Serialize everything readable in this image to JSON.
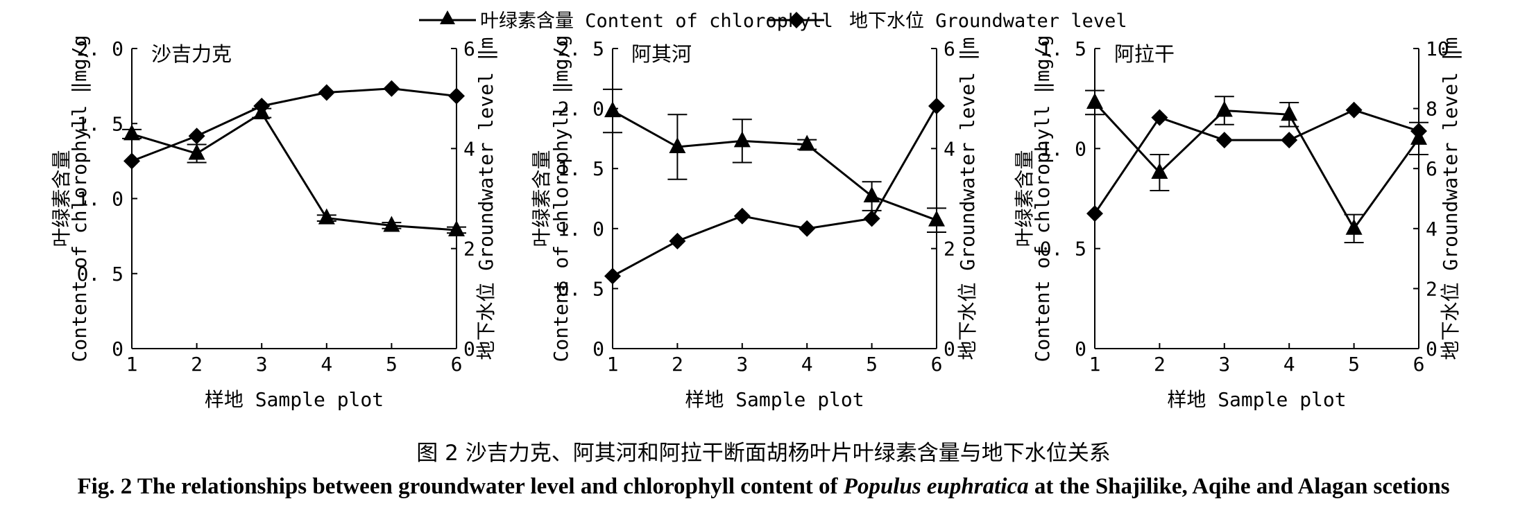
{
  "legend": {
    "chlorophyll": "叶绿素含量 Content of chlorophyll",
    "groundwater": "地下水位 Groundwater level"
  },
  "axis_labels": {
    "left_cn": "叶绿素含量",
    "left_en": "Content of chlorophyll ‖mg/g",
    "right": "地下水位 Groundwater level ‖m",
    "x": "样地 Sample plot"
  },
  "caption": {
    "cn": "图 2   沙吉力克、阿其河和阿拉干断面胡杨叶片叶绿素含量与地下水位关系",
    "en_prefix": "Fig. 2    The relationships between groundwater level and chlorophyll content of ",
    "en_species": "Populus euphratica",
    "en_suffix": " at the Shajilike, Aqihe and Alagan scetions"
  },
  "chart_data": [
    {
      "type": "line",
      "title": "沙吉力克",
      "x": [
        1,
        2,
        3,
        4,
        5,
        6
      ],
      "xlabel": "样地 Sample plot",
      "y_left": {
        "label": "Content of chlorophyll ‖mg/g",
        "lim": [
          0,
          2.0
        ],
        "ticks": [
          0,
          0.5,
          1.0,
          1.5,
          2.0
        ],
        "tick_labels": [
          "0",
          "0. 5",
          "1. 0",
          "1. 5",
          "2. 0"
        ]
      },
      "y_right": {
        "label": "地下水位 Groundwater level ‖m",
        "lim": [
          0,
          6
        ],
        "ticks": [
          0,
          2,
          4,
          6
        ]
      },
      "series": [
        {
          "name": "叶绿素含量 Content of chlorophyll",
          "axis": "left",
          "marker": "triangle",
          "values": [
            1.43,
            1.3,
            1.57,
            0.87,
            0.82,
            0.79
          ],
          "errors": [
            0.03,
            0.06,
            0.03,
            0.02,
            0.02,
            0.02
          ]
        },
        {
          "name": "地下水位 Groundwater level",
          "axis": "right",
          "marker": "diamond",
          "values": [
            3.75,
            4.25,
            4.85,
            5.12,
            5.2,
            5.05
          ]
        }
      ]
    },
    {
      "type": "line",
      "title": "阿其河",
      "x": [
        1,
        2,
        3,
        4,
        5,
        6
      ],
      "xlabel": "样地 Sample plot",
      "y_left": {
        "label": "Content of chlorophyll ‖mg/g",
        "lim": [
          0,
          2.5
        ],
        "ticks": [
          0,
          0.5,
          1.0,
          1.5,
          2.0,
          2.5
        ],
        "tick_labels": [
          "0",
          "0. 5",
          "1. 0",
          "1. 5",
          "2. 0",
          "2. 5"
        ]
      },
      "y_right": {
        "label": "地下水位 Groundwater level ‖m",
        "lim": [
          0,
          6
        ],
        "ticks": [
          0,
          2,
          4,
          6
        ]
      },
      "series": [
        {
          "name": "叶绿素含量 Content of chlorophyll",
          "axis": "left",
          "marker": "triangle",
          "values": [
            1.98,
            1.68,
            1.73,
            1.7,
            1.27,
            1.07
          ],
          "errors": [
            0.18,
            0.27,
            0.18,
            0.04,
            0.12,
            0.1
          ]
        },
        {
          "name": "地下水位 Groundwater level",
          "axis": "right",
          "marker": "diamond",
          "values": [
            1.45,
            2.15,
            2.65,
            2.4,
            2.6,
            4.85
          ]
        }
      ]
    },
    {
      "type": "line",
      "title": "阿拉干",
      "x": [
        1,
        2,
        3,
        4,
        5,
        6
      ],
      "xlabel": "样地 Sample plot",
      "y_left": {
        "label": "Content of chlorophyll ‖mg/g",
        "lim": [
          0,
          1.5
        ],
        "ticks": [
          0,
          0.5,
          1.0,
          1.5
        ],
        "tick_labels": [
          "0",
          "0. 5",
          "1. 0",
          "1. 5"
        ]
      },
      "y_right": {
        "label": "地下水位 Groundwater level ‖m",
        "lim": [
          0,
          10
        ],
        "ticks": [
          0,
          2,
          4,
          6,
          8,
          10
        ]
      },
      "series": [
        {
          "name": "叶绿素含量 Content of chlorophyll",
          "axis": "left",
          "marker": "triangle",
          "values": [
            1.23,
            0.88,
            1.19,
            1.17,
            0.6,
            1.05
          ],
          "errors": [
            0.06,
            0.09,
            0.07,
            0.06,
            0.07,
            0.08
          ]
        },
        {
          "name": "地下水位 Groundwater level",
          "axis": "right",
          "marker": "diamond",
          "values": [
            4.5,
            7.7,
            6.95,
            6.95,
            7.95,
            7.25
          ]
        }
      ]
    }
  ]
}
